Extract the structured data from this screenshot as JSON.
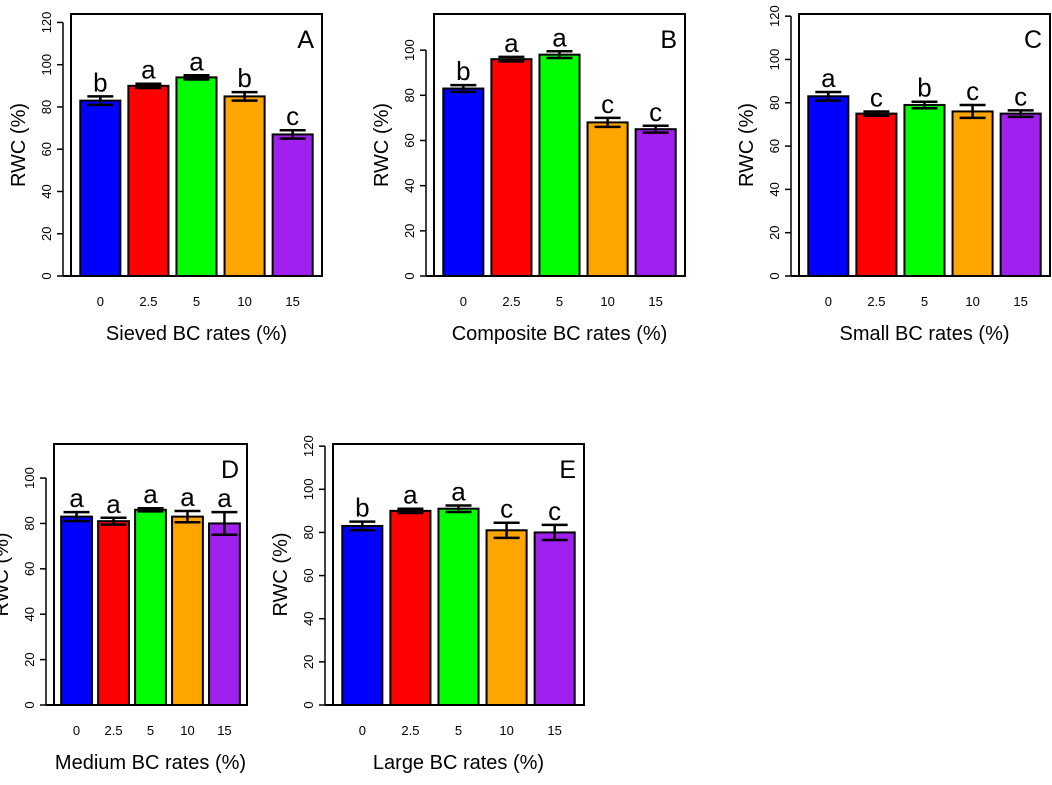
{
  "chart_data": [
    {
      "type": "bar",
      "panel_label": "A",
      "xlabel": "Sieved BC rates (%)",
      "ylabel": "RWC (%)",
      "categories": [
        "0",
        "2.5",
        "5",
        "10",
        "15"
      ],
      "values": [
        83,
        90,
        94,
        85,
        67
      ],
      "errors": [
        2,
        1,
        1,
        2,
        2
      ],
      "letters": [
        "b",
        "a",
        "a",
        "b",
        "c"
      ],
      "ylim": [
        0,
        124
      ],
      "yticks": [
        0,
        20,
        40,
        60,
        80,
        100,
        120
      ]
    },
    {
      "type": "bar",
      "panel_label": "B",
      "xlabel": "Composite BC rates (%)",
      "ylabel": "RWC (%)",
      "categories": [
        "0",
        "2.5",
        "5",
        "10",
        "15"
      ],
      "values": [
        83,
        96,
        98,
        68,
        65
      ],
      "errors": [
        1.5,
        1,
        1.5,
        2,
        1.5
      ],
      "letters": [
        "b",
        "a",
        "a",
        "c",
        "c"
      ],
      "ylim": [
        0,
        116
      ],
      "yticks": [
        0,
        20,
        40,
        60,
        80,
        100
      ]
    },
    {
      "type": "bar",
      "panel_label": "C",
      "xlabel": "Small BC rates (%)",
      "ylabel": "RWC (%)",
      "categories": [
        "0",
        "2.5",
        "5",
        "10",
        "15"
      ],
      "values": [
        83,
        75,
        79,
        76,
        75
      ],
      "errors": [
        2,
        1,
        1.5,
        3,
        1.5
      ],
      "letters": [
        "a",
        "c",
        "b",
        "c",
        "c"
      ],
      "ylim": [
        0,
        121
      ],
      "yticks": [
        0,
        20,
        40,
        60,
        80,
        100,
        120
      ]
    },
    {
      "type": "bar",
      "panel_label": "D",
      "xlabel": "Medium BC rates (%)",
      "ylabel": "RWC (%)",
      "categories": [
        "0",
        "2.5",
        "5",
        "10",
        "15"
      ],
      "values": [
        83,
        81,
        86,
        83,
        80
      ],
      "errors": [
        2,
        1.5,
        0.7,
        2.5,
        5
      ],
      "letters": [
        "a",
        "a",
        "a",
        "a",
        "a"
      ],
      "ylim": [
        0,
        115
      ],
      "yticks": [
        0,
        20,
        40,
        60,
        80,
        100
      ]
    },
    {
      "type": "bar",
      "panel_label": "E",
      "xlabel": "Large BC rates (%)",
      "ylabel": "RWC (%)",
      "categories": [
        "0",
        "2.5",
        "5",
        "10",
        "15"
      ],
      "values": [
        83,
        90,
        91,
        81,
        80
      ],
      "errors": [
        2,
        1,
        1.5,
        3.5,
        3.5
      ],
      "letters": [
        "b",
        "a",
        "a",
        "c",
        "c"
      ],
      "ylim": [
        0,
        121
      ],
      "yticks": [
        0,
        20,
        40,
        60,
        80,
        100,
        120
      ]
    }
  ],
  "colors": [
    "#0000ff",
    "#ff0000",
    "#00ff00",
    "#ffa500",
    "#a020f0"
  ]
}
